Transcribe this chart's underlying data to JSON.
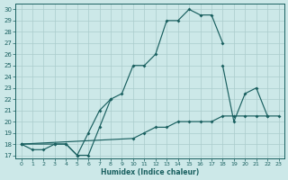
{
  "xlabel": "Humidex (Indice chaleur)",
  "xlim_min": -0.5,
  "xlim_max": 23.5,
  "ylim_min": 16.7,
  "ylim_max": 30.5,
  "xticks": [
    0,
    1,
    2,
    3,
    4,
    5,
    6,
    7,
    8,
    9,
    10,
    11,
    12,
    13,
    14,
    15,
    16,
    17,
    18,
    19,
    20,
    21,
    22,
    23
  ],
  "yticks": [
    17,
    18,
    19,
    20,
    21,
    22,
    23,
    24,
    25,
    26,
    27,
    28,
    29,
    30
  ],
  "bg_color": "#cce8e8",
  "grid_color": "#b8d8d8",
  "line_color": "#1a6060",
  "lines": [
    {
      "segments": [
        {
          "x": [
            0,
            1,
            2,
            3,
            4,
            5,
            6,
            7,
            8,
            9,
            10,
            11,
            12,
            13,
            14,
            15,
            16,
            17,
            18
          ],
          "y": [
            18,
            17.5,
            17.5,
            18,
            18,
            17,
            17,
            19.5,
            22,
            22.5,
            25,
            25,
            26,
            29,
            29,
            30,
            29.5,
            29.5,
            27
          ]
        }
      ]
    },
    {
      "segments": [
        {
          "x": [
            0,
            3,
            4,
            5,
            6,
            7,
            8
          ],
          "y": [
            18,
            18,
            18,
            17,
            19,
            21,
            22
          ]
        },
        {
          "x": [
            18,
            19,
            20,
            21,
            22
          ],
          "y": [
            25,
            20,
            22.5,
            23,
            20.5
          ]
        }
      ]
    },
    {
      "segments": [
        {
          "x": [
            0,
            10,
            11,
            12,
            13,
            14,
            15,
            16,
            17,
            18,
            19,
            20,
            21,
            22,
            23
          ],
          "y": [
            18,
            18.5,
            19,
            19.5,
            19.5,
            20,
            20,
            20,
            20,
            20.5,
            20.5,
            20.5,
            20.5,
            20.5,
            20.5
          ]
        }
      ]
    }
  ]
}
